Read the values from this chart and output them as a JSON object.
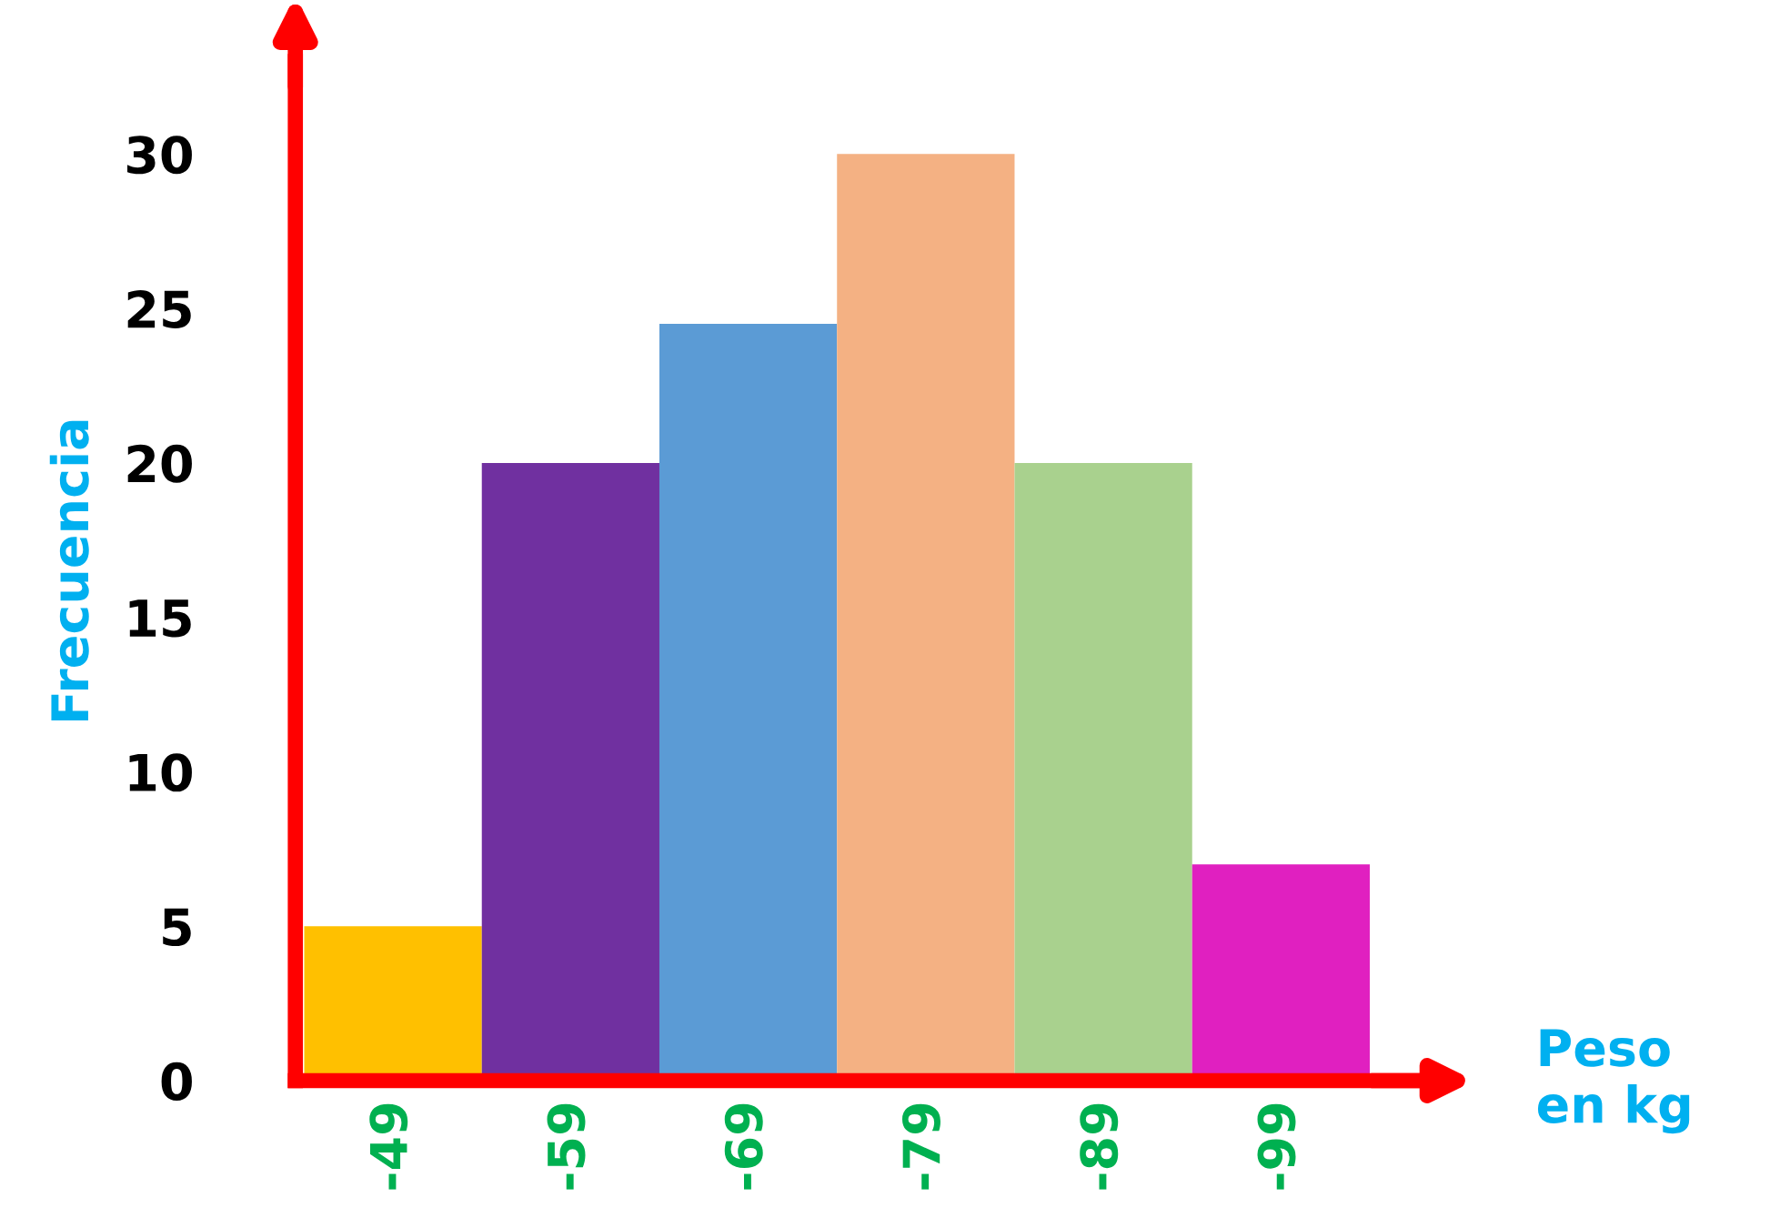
{
  "chart_data": {
    "type": "bar",
    "categories": [
      "-49",
      "-59",
      "-69",
      "-79",
      "-89",
      "-99"
    ],
    "values": [
      5,
      20,
      24.5,
      30,
      20,
      7
    ],
    "colors": [
      "#ffc000",
      "#7030a0",
      "#5b9bd5",
      "#f4b183",
      "#a9d18e",
      "#e020c0"
    ],
    "xlabel": "Peso\nen kg",
    "ylabel": "Frecuencia",
    "ylim": [
      0,
      33
    ],
    "yticks": [
      0,
      5,
      10,
      15,
      20,
      25,
      30
    ],
    "grid": false,
    "legend": false
  }
}
